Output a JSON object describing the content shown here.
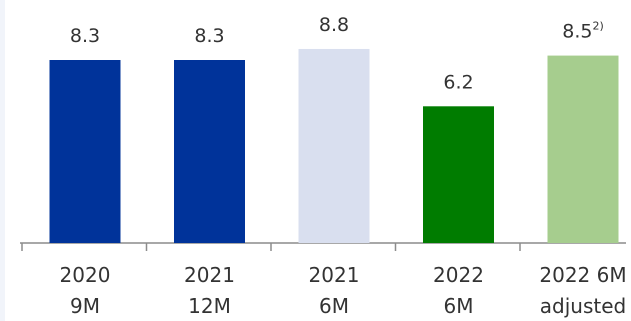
{
  "chart_data": {
    "type": "bar",
    "title": "",
    "xlabel": "",
    "ylabel": "",
    "categories": [
      [
        "2020",
        "9M"
      ],
      [
        "2021",
        "12M"
      ],
      [
        "2021",
        "6M"
      ],
      [
        "2022",
        "6M"
      ],
      [
        "2022 6M",
        "adjusted"
      ]
    ],
    "values": [
      8.3,
      8.3,
      8.8,
      6.2,
      8.5
    ],
    "value_labels": [
      "8.3",
      "8.3",
      "8.8",
      "6.2",
      "8.5"
    ],
    "value_label_superscripts": [
      "",
      "",
      "",
      "",
      "2)"
    ],
    "colors": [
      "#00339a",
      "#00339a",
      "#d9dfef",
      "#007c00",
      "#a6cd8e"
    ],
    "ylim": [
      0,
      9.5
    ],
    "grid": false,
    "legend": "none"
  }
}
